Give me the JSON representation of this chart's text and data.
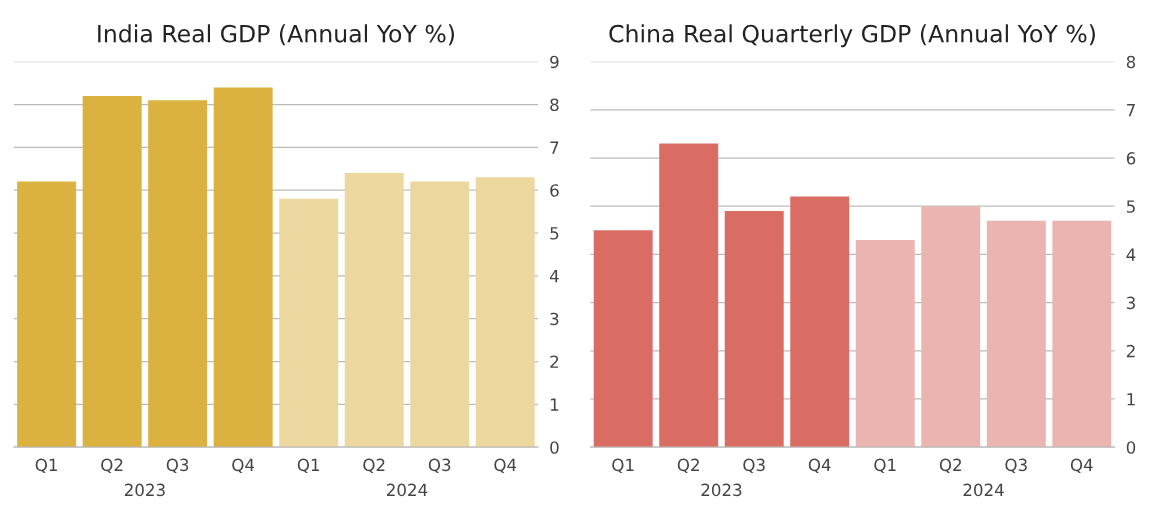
{
  "chart_data": [
    {
      "type": "bar",
      "title": "India Real GDP (Annual YoY %)",
      "categories": [
        "Q1",
        "Q2",
        "Q3",
        "Q4",
        "Q1",
        "Q2",
        "Q3",
        "Q4"
      ],
      "values": [
        6.2,
        8.2,
        8.1,
        8.4,
        5.8,
        6.4,
        6.2,
        6.3
      ],
      "colors": [
        "#dbb240",
        "#dbb240",
        "#dbb240",
        "#dbb240",
        "#ecd79f",
        "#ecd79f",
        "#ecd79f",
        "#ecd79f"
      ],
      "ylim": [
        0,
        9
      ],
      "yticks": [
        0,
        1,
        2,
        3,
        4,
        5,
        6,
        7,
        8,
        9
      ],
      "grid": "y",
      "annotations": [
        "2023",
        "2024"
      ]
    },
    {
      "type": "bar",
      "title": "China Real Quarterly GDP (Annual YoY %)",
      "categories": [
        "Q1",
        "Q2",
        "Q3",
        "Q4",
        "Q1",
        "Q2",
        "Q3",
        "Q4"
      ],
      "values": [
        4.5,
        6.3,
        4.9,
        5.2,
        4.3,
        5.0,
        4.7,
        4.7
      ],
      "colors": [
        "#d96d64",
        "#d96d64",
        "#d96d64",
        "#d96d64",
        "#eab4b1",
        "#eab4b1",
        "#eab4b1",
        "#eab4b1"
      ],
      "ylim": [
        0,
        8
      ],
      "yticks": [
        0,
        1,
        2,
        3,
        4,
        5,
        6,
        7,
        8
      ],
      "grid": "y",
      "annotations": [
        "2023",
        "2024"
      ]
    }
  ]
}
